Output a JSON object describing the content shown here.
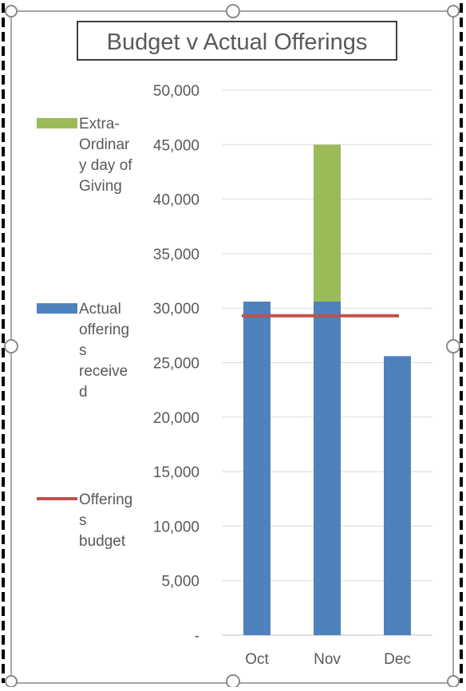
{
  "chart_data": {
    "type": "bar",
    "title": "Budget v Actual Offerings",
    "categories": [
      "Oct",
      "Nov",
      "Dec"
    ],
    "y_tick_labels": [
      "-",
      "5,000",
      "10,000",
      "15,000",
      "20,000",
      "25,000",
      "30,000",
      "35,000",
      "40,000",
      "45,000",
      "50,000"
    ],
    "ylim": [
      0,
      50000
    ],
    "grid": true,
    "legend_position": "left",
    "series": [
      {
        "name": "Actual offerings received",
        "kind": "stacked-bar",
        "color": "#4F81BD",
        "values": [
          30600,
          30600,
          25600
        ],
        "legend_lines": [
          "Actual",
          "offering",
          "s",
          "receive",
          "d"
        ]
      },
      {
        "name": "Extra-Ordinary day of Giving",
        "kind": "stacked-bar",
        "color": "#9BBB59",
        "values": [
          0,
          14400,
          0
        ],
        "legend_lines": [
          "Extra-",
          "Ordinar",
          "y day of",
          "Giving"
        ]
      },
      {
        "name": "Offerings budget",
        "kind": "line",
        "color": "#C0504D",
        "values": [
          29300,
          29300,
          29300
        ],
        "legend_lines": [
          "Offering",
          "s",
          "budget"
        ]
      }
    ]
  }
}
